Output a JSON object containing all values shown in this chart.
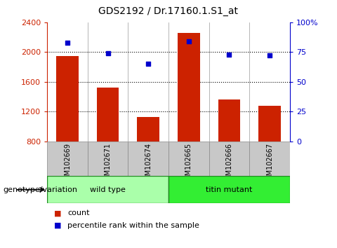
{
  "title": "GDS2192 / Dr.17160.1.S1_at",
  "samples": [
    "GSM102669",
    "GSM102671",
    "GSM102674",
    "GSM102665",
    "GSM102666",
    "GSM102667"
  ],
  "counts": [
    1950,
    1520,
    1130,
    2260,
    1360,
    1280
  ],
  "percentiles": [
    83,
    74,
    65,
    84,
    73,
    72
  ],
  "bar_color": "#cc2200",
  "dot_color": "#0000cc",
  "ylim_left": [
    800,
    2400
  ],
  "ylim_right": [
    0,
    100
  ],
  "yticks_left": [
    800,
    1200,
    1600,
    2000,
    2400
  ],
  "yticks_right": [
    0,
    25,
    50,
    75,
    100
  ],
  "yticklabels_right": [
    "0",
    "25",
    "50",
    "75",
    "100%"
  ],
  "grid_values": [
    1200,
    1600,
    2000
  ],
  "groups": [
    {
      "label": "wild type",
      "indices": [
        0,
        1,
        2
      ],
      "color": "#aaffaa"
    },
    {
      "label": "titin mutant",
      "indices": [
        3,
        4,
        5
      ],
      "color": "#33ee33"
    }
  ],
  "genotype_label": "genotype/variation",
  "legend_count_label": "count",
  "legend_pct_label": "percentile rank within the sample",
  "bar_width": 0.55,
  "plot_bg": "#ffffff",
  "label_area_bg": "#c8c8c8",
  "title_fontsize": 10,
  "axis_tick_fontsize": 8,
  "sample_label_fontsize": 7,
  "group_label_fontsize": 8,
  "legend_fontsize": 8,
  "genotype_fontsize": 8
}
